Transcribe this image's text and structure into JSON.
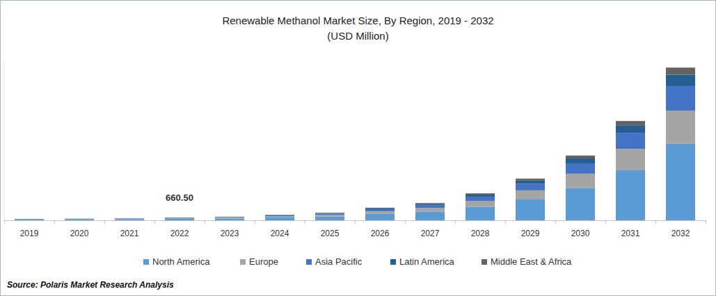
{
  "chart_data": {
    "type": "bar",
    "stacked": true,
    "title": "Renewable Methanol Market  Size, By Region, 2019 - 2032",
    "subtitle": "(USD Million)",
    "source": "Source: Polaris Market Research Analysis",
    "categories": [
      "2019",
      "2020",
      "2021",
      "2022",
      "2023",
      "2024",
      "2025",
      "2026",
      "2027",
      "2028",
      "2029",
      "2030",
      "2031",
      "2032"
    ],
    "series": [
      {
        "name": "North America",
        "color": "#5b9bd5",
        "values": [
          165,
          200,
          250,
          330.2,
          425,
          650,
          900,
          1500,
          2050,
          3200,
          4950,
          7700,
          11900,
          18200
        ]
      },
      {
        "name": "Europe",
        "color": "#a5a5a5",
        "values": [
          72,
          88,
          110,
          145.3,
          187,
          286,
          396,
          660,
          900,
          1410,
          2180,
          3390,
          5100,
          7900
        ]
      },
      {
        "name": "Asia Pacific",
        "color": "#4472c4",
        "values": [
          53,
          64,
          80,
          105.7,
          136,
          208,
          288,
          480,
          656,
          1020,
          1580,
          2460,
          3800,
          5800
        ]
      },
      {
        "name": "Latin America",
        "color": "#255e91",
        "values": [
          25,
          30,
          38,
          49.5,
          64,
          97,
          135,
          225,
          308,
          480,
          740,
          1150,
          1800,
          2700
        ]
      },
      {
        "name": "Middle East & Africa",
        "color": "#636363",
        "values": [
          15,
          18,
          22,
          29.8,
          38,
          59,
          81,
          135,
          186,
          290,
          450,
          700,
          1000,
          1700
        ]
      }
    ],
    "annotations": [
      {
        "text": "660.50",
        "x": "2022"
      }
    ],
    "ylim": [
      0,
      38000
    ],
    "yticks": [],
    "tick_labels": "x",
    "grid": false,
    "legend": "bottom"
  }
}
